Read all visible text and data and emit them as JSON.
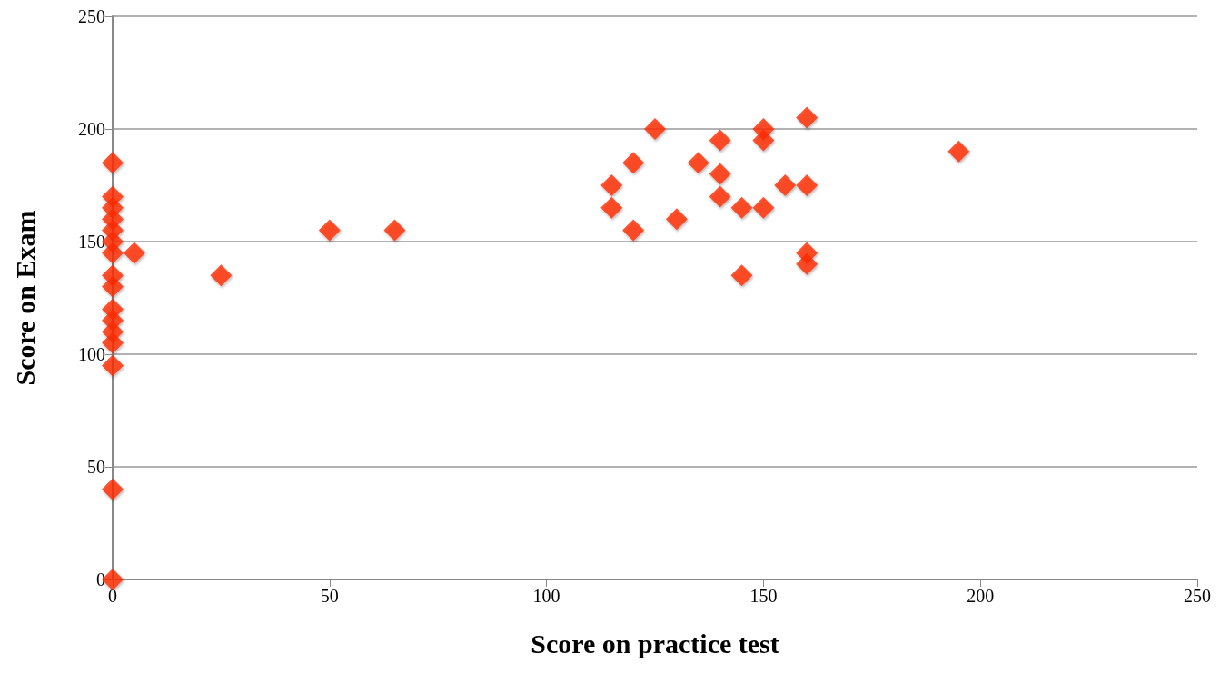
{
  "chart_data": {
    "type": "scatter",
    "xlabel": "Score on practice test",
    "ylabel": "Score on Exam",
    "x": [
      0,
      0,
      0,
      0,
      0,
      0,
      0,
      0,
      0,
      0,
      0,
      0,
      0,
      0,
      0,
      0,
      5,
      25,
      50,
      65,
      115,
      115,
      120,
      120,
      125,
      130,
      135,
      140,
      140,
      140,
      145,
      145,
      150,
      150,
      150,
      155,
      160,
      160,
      160,
      160,
      195
    ],
    "series": [
      {
        "color": "#ff2a00",
        "values": [
          185,
          170,
          165,
          160,
          155,
          150,
          145,
          135,
          130,
          120,
          115,
          110,
          105,
          95,
          40,
          0,
          145,
          135,
          155,
          155,
          175,
          165,
          185,
          155,
          200,
          160,
          185,
          195,
          180,
          170,
          165,
          135,
          200,
          195,
          165,
          175,
          205,
          175,
          145,
          140,
          190
        ]
      }
    ],
    "xlim": [
      0,
      250
    ],
    "xticks": [
      0,
      50,
      100,
      150,
      200,
      250
    ],
    "ylim": [
      0,
      250
    ],
    "yticks": [
      0,
      50,
      100,
      150,
      200,
      250
    ],
    "grid": "y",
    "marker": "diamond"
  }
}
